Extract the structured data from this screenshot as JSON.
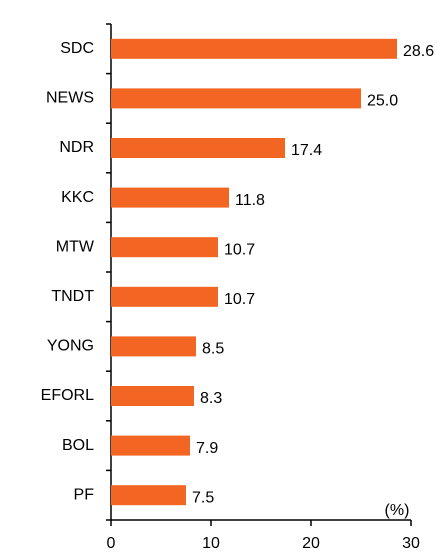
{
  "chart_data": {
    "type": "bar",
    "orientation": "horizontal",
    "categories": [
      "SDC",
      "NEWS",
      "NDR",
      "KKC",
      "MTW",
      "TNDT",
      "YONG",
      "EFORL",
      "BOL",
      "PF"
    ],
    "values": [
      28.6,
      25.0,
      17.4,
      11.8,
      10.7,
      10.7,
      8.5,
      8.3,
      7.9,
      7.5
    ],
    "value_labels": [
      "28.6",
      "25.0",
      "17.4",
      "11.8",
      "10.7",
      "10.7",
      "8.5",
      "8.3",
      "7.9",
      "7.5"
    ],
    "color": "#f26522",
    "xlim": [
      0,
      30
    ],
    "xticks": [
      0,
      10,
      20,
      30
    ],
    "annotation": "(%)"
  }
}
